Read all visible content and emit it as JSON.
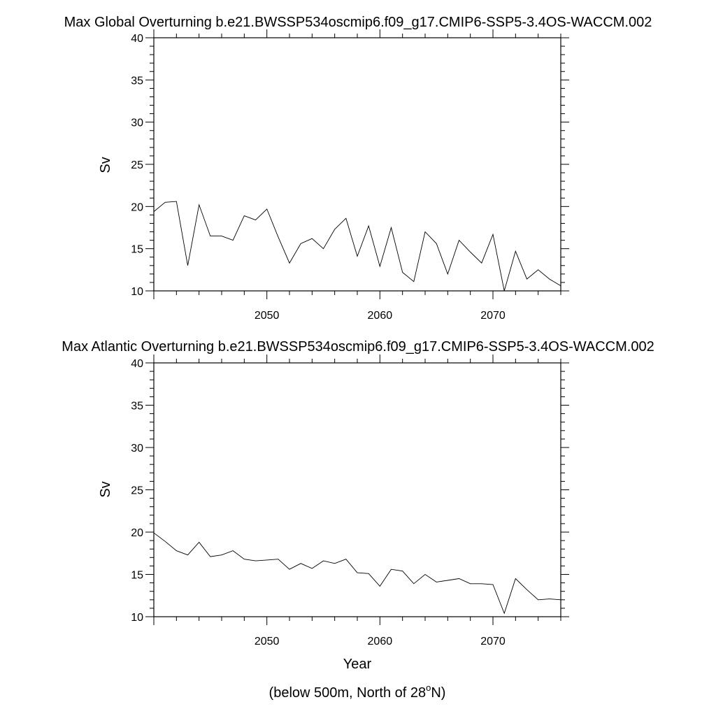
{
  "chart_data": [
    {
      "type": "line",
      "title": "Max Global Overturning b.e21.BWSSP534oscmip6.f09_g17.CMIP6-SSP5-3.4OS-WACCM.002",
      "ylabel": "Sv",
      "xlabel": "",
      "xlim": [
        2040,
        2076
      ],
      "ylim": [
        10,
        40
      ],
      "x_ticks": [
        2050,
        2060,
        2070
      ],
      "y_ticks": [
        10,
        15,
        20,
        25,
        30,
        35,
        40
      ],
      "series": [
        {
          "x": [
            2040,
            2041,
            2042,
            2043,
            2044,
            2045,
            2046,
            2047,
            2048,
            2049,
            2050,
            2051,
            2052,
            2053,
            2054,
            2055,
            2056,
            2057,
            2058,
            2059,
            2060,
            2061,
            2062,
            2063,
            2064,
            2065,
            2066,
            2067,
            2068,
            2069,
            2070,
            2071,
            2072,
            2073,
            2074,
            2075,
            2076
          ],
          "y": [
            19.4,
            20.5,
            20.6,
            13.0,
            20.2,
            16.5,
            16.5,
            16.0,
            18.9,
            18.4,
            19.7,
            16.4,
            13.3,
            15.6,
            16.2,
            15.0,
            17.3,
            18.6,
            14.1,
            17.7,
            12.9,
            17.5,
            12.2,
            11.1,
            17.0,
            15.6,
            12.0,
            16.0,
            14.6,
            13.3,
            16.7,
            10.0,
            14.7,
            11.4,
            12.5,
            11.4,
            10.6
          ]
        }
      ]
    },
    {
      "type": "line",
      "title": "Max Atlantic Overturning b.e21.BWSSP534oscmip6.f09_g17.CMIP6-SSP5-3.4OS-WACCM.002",
      "ylabel": "Sv",
      "xlabel": "Year",
      "xlim": [
        2040,
        2076
      ],
      "ylim": [
        10,
        40
      ],
      "x_ticks": [
        2050,
        2060,
        2070
      ],
      "y_ticks": [
        10,
        15,
        20,
        25,
        30,
        35,
        40
      ],
      "series": [
        {
          "x": [
            2040,
            2041,
            2042,
            2043,
            2044,
            2045,
            2046,
            2047,
            2048,
            2049,
            2050,
            2051,
            2052,
            2053,
            2054,
            2055,
            2056,
            2057,
            2058,
            2059,
            2060,
            2061,
            2062,
            2063,
            2064,
            2065,
            2066,
            2067,
            2068,
            2069,
            2070,
            2071,
            2072,
            2073,
            2074,
            2075,
            2076
          ],
          "y": [
            19.9,
            18.9,
            17.8,
            17.3,
            18.8,
            17.1,
            17.3,
            17.8,
            16.8,
            16.6,
            16.7,
            16.8,
            15.6,
            16.3,
            15.7,
            16.6,
            16.3,
            16.8,
            15.2,
            15.1,
            13.6,
            15.6,
            15.4,
            13.9,
            15.0,
            14.1,
            14.3,
            14.5,
            13.9,
            13.9,
            13.8,
            10.4,
            14.5,
            13.2,
            12.0,
            12.1,
            12.0
          ]
        }
      ]
    }
  ],
  "footer": {
    "text_before": "(below 500m, North of 28",
    "superscript": "o",
    "text_after": "N)"
  }
}
